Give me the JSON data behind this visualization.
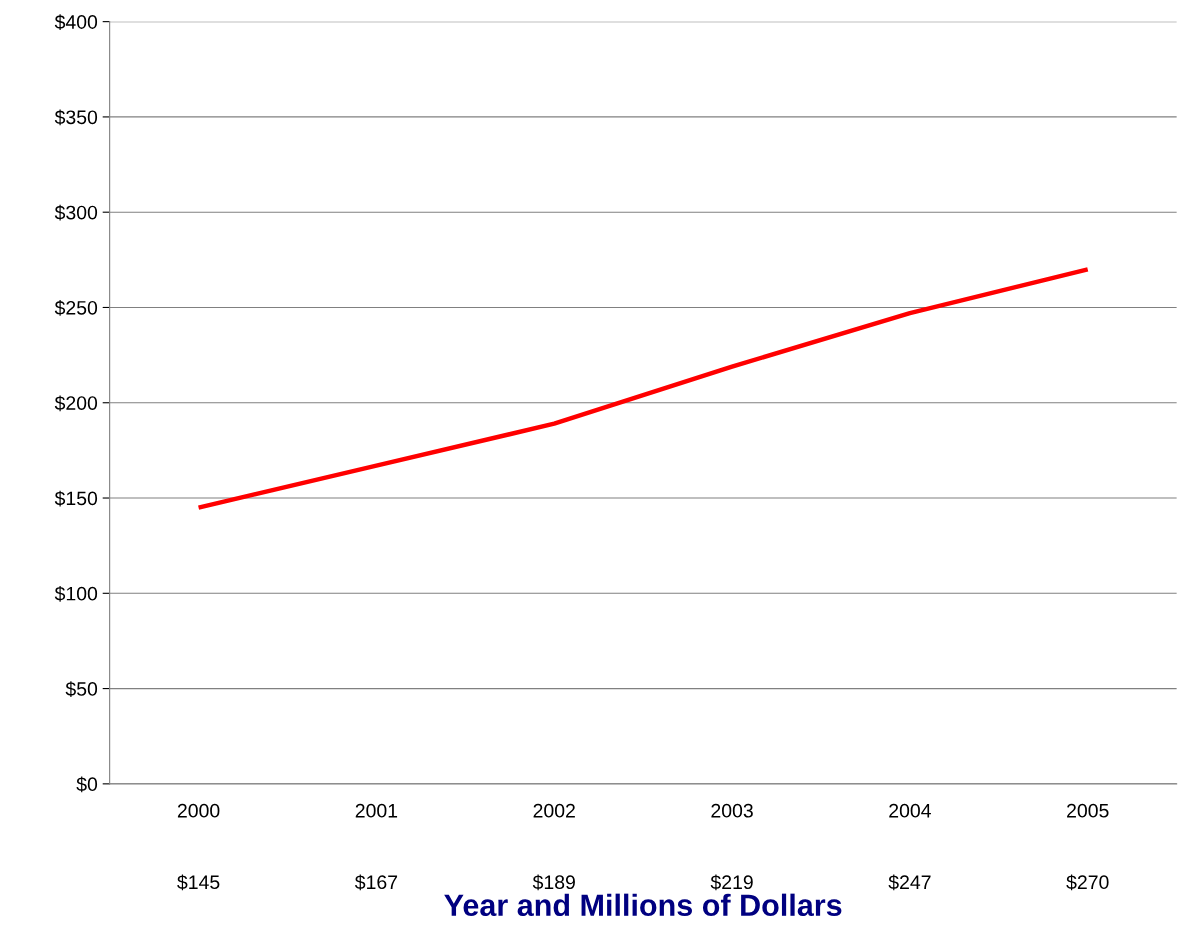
{
  "chart_data": {
    "type": "line",
    "xlabel": "Year and Millions of Dollars",
    "categories": [
      "2000",
      "2001",
      "2002",
      "2003",
      "2004",
      "2005"
    ],
    "series": [
      {
        "color": "#ff0000",
        "values": [
          145,
          167,
          189,
          219,
          247,
          270
        ],
        "value_labels": [
          "$145",
          "$167",
          "$189",
          "$219",
          "$247",
          "$270"
        ]
      }
    ],
    "ylim": [
      0,
      400
    ],
    "yticks": [
      {
        "value": 0,
        "label": "$0"
      },
      {
        "value": 50,
        "label": "$50"
      },
      {
        "value": 100,
        "label": "$100"
      },
      {
        "value": 150,
        "label": "$150"
      },
      {
        "value": 200,
        "label": "$200"
      },
      {
        "value": 250,
        "label": "$250"
      },
      {
        "value": 300,
        "label": "$300"
      },
      {
        "value": 350,
        "label": "$350"
      },
      {
        "value": 400,
        "label": "$400"
      }
    ],
    "grid": "y",
    "marker": "none",
    "line_style": "solid"
  }
}
